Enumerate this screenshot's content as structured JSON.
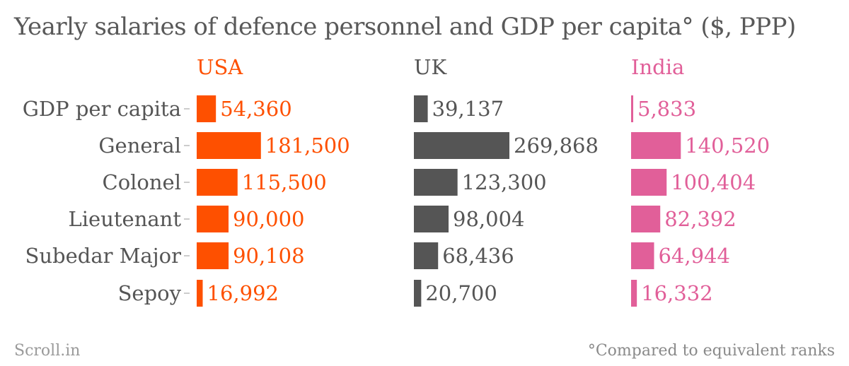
{
  "title": "Yearly salaries of defence personnel and GDP per capita° ($, PPP)",
  "source": "Scroll.in",
  "footnote": "°Compared to equivalent ranks",
  "colors": {
    "USA": "#fe5000",
    "UK": "#555555",
    "India": "#e15f99"
  },
  "chart_data": {
    "type": "bar",
    "orientation": "horizontal",
    "title": "Yearly salaries of defence personnel and GDP per capita° ($, PPP)",
    "categories": [
      "GDP per capita",
      "General",
      "Colonel",
      "Lieutenant",
      "Subedar Major",
      "Sepoy"
    ],
    "series": [
      {
        "name": "USA",
        "values": [
          54360,
          181500,
          115500,
          90000,
          90108,
          16992
        ],
        "labels": [
          "54,360",
          "181,500",
          "115,500",
          "90,000",
          "90,108",
          "16,992"
        ]
      },
      {
        "name": "UK",
        "values": [
          39137,
          269868,
          123300,
          98004,
          68436,
          20700
        ],
        "labels": [
          "39,137",
          "269,868",
          "123,300",
          "98,004",
          "68,436",
          "20,700"
        ]
      },
      {
        "name": "India",
        "values": [
          5833,
          140520,
          100404,
          82392,
          64944,
          16332
        ],
        "labels": [
          "5,833",
          "140,520",
          "100,404",
          "82,392",
          "64,944",
          "16,332"
        ]
      }
    ],
    "xlim": [
      0,
      269868
    ],
    "grid": false,
    "legend": "panel headers above columns"
  }
}
